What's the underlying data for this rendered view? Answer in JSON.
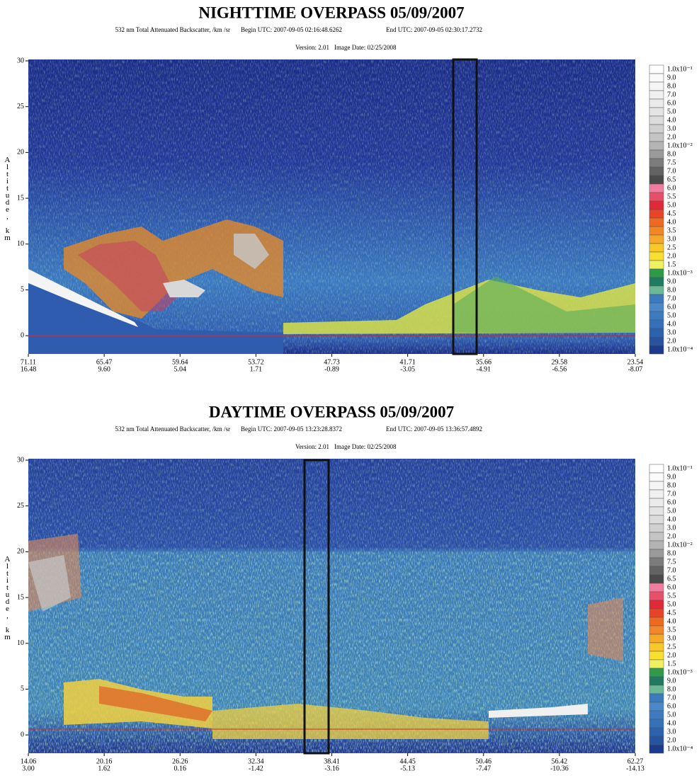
{
  "chart_data": [
    {
      "type": "curtain",
      "title": "NIGHTTIME OVERPASS 05/09/2007",
      "subtitle": "532 nm Total Attenuated Backscatter, /km /sr",
      "begin": "Begin UTC: 2007-09-05 02:16:48.6262",
      "end": "End UTC: 2007-09-05 02:30:17.2732",
      "version": "Version: 2.01",
      "image_date": "Image Date: 02/25/2008",
      "y_label": "Altitude, km",
      "ylim": [
        -2,
        30
      ],
      "yticks": [
        0,
        5,
        10,
        15,
        20,
        25,
        30
      ],
      "x_labels": [
        [
          "71.11",
          "16.48"
        ],
        [
          "65.47",
          "9.60"
        ],
        [
          "59.64",
          "5.04"
        ],
        [
          "53.72",
          "1.71"
        ],
        [
          "47.73",
          "-0.89"
        ],
        [
          "41.71",
          "-3.05"
        ],
        [
          "35.66",
          "-4.91"
        ],
        [
          "29.58",
          "-6.56"
        ],
        [
          "23.54",
          "-8.07"
        ]
      ],
      "colorbar": {
        "labels": [
          "1.0x10⁻¹",
          "9.0",
          "8.0",
          "7.0",
          "6.0",
          "5.0",
          "4.0",
          "3.0",
          "2.0",
          "1.0x10⁻²",
          "8.0",
          "7.5",
          "7.0",
          "6.5",
          "6.0",
          "5.5",
          "5.0",
          "4.5",
          "4.0",
          "3.5",
          "3.0",
          "2.5",
          "2.0",
          "1.5",
          "1.0x10⁻³",
          "9.0",
          "8.0",
          "7.0",
          "6.0",
          "5.0",
          "4.0",
          "3.0",
          "2.0",
          "1.0x10⁻⁴"
        ],
        "colors": [
          "#ffffff",
          "#fafafa",
          "#f5f5f5",
          "#f0f0f0",
          "#ebebeb",
          "#e4e4e4",
          "#dcdcdc",
          "#d0d0d0",
          "#c4c4c4",
          "#b4b4b4",
          "#9a9a9a",
          "#7c7c7c",
          "#636363",
          "#4a4a4a",
          "#f07ca0",
          "#e8506a",
          "#e02a3a",
          "#e8442a",
          "#ee6a22",
          "#f2862a",
          "#f5a82a",
          "#f8c82a",
          "#f8e030",
          "#f0f060",
          "#2e9a4a",
          "#1f7a60",
          "#6ab896",
          "#3c7ac0",
          "#4a88c8",
          "#3e7ac0",
          "#3570b8",
          "#2d62ae",
          "#27549e",
          "#1e3a8c"
        ]
      }
    },
    {
      "type": "curtain",
      "title": "DAYTIME OVERPASS 05/09/2007",
      "subtitle": "532 nm Total Attenuated Backscatter, /km /sr",
      "begin": "Begin UTC: 2007-09-05 13:23:28.8372",
      "end": "End UTC: 2007-09-05 13:36:57.4892",
      "version": "Version: 2.01",
      "image_date": "Image Date: 02/25/2008",
      "y_label": "Altitude, km",
      "ylim": [
        -2,
        30
      ],
      "yticks": [
        0,
        5,
        10,
        15,
        20,
        25,
        30
      ],
      "x_labels": [
        [
          "14.06",
          "3.00"
        ],
        [
          "20.16",
          "1.62"
        ],
        [
          "26.26",
          "0.16"
        ],
        [
          "32.34",
          "-1.42"
        ],
        [
          "38.41",
          "-3.16"
        ],
        [
          "44.45",
          "-5.13"
        ],
        [
          "50.46",
          "-7.47"
        ],
        [
          "56.42",
          "-10.36"
        ],
        [
          "62.27",
          "-14.13"
        ]
      ],
      "colorbar": {
        "labels": [
          "1.0x10⁻¹",
          "9.0",
          "8.0",
          "7.0",
          "6.0",
          "5.0",
          "4.0",
          "3.0",
          "2.0",
          "1.0x10⁻²",
          "8.0",
          "7.5",
          "7.0",
          "6.5",
          "6.0",
          "5.5",
          "5.0",
          "4.5",
          "4.0",
          "3.5",
          "3.0",
          "2.5",
          "2.0",
          "1.5",
          "1.0x10⁻³",
          "9.0",
          "8.0",
          "7.0",
          "6.0",
          "5.0",
          "4.0",
          "3.0",
          "2.0",
          "1.0x10⁻⁴"
        ],
        "colors": [
          "#ffffff",
          "#fafafa",
          "#f5f5f5",
          "#f0f0f0",
          "#ebebeb",
          "#e4e4e4",
          "#dcdcdc",
          "#d0d0d0",
          "#c4c4c4",
          "#b4b4b4",
          "#9a9a9a",
          "#7c7c7c",
          "#636363",
          "#4a4a4a",
          "#f07ca0",
          "#e8506a",
          "#e02a3a",
          "#e8442a",
          "#ee6a22",
          "#f2862a",
          "#f5a82a",
          "#f8c82a",
          "#f8e030",
          "#f0f060",
          "#2e9a4a",
          "#1f7a60",
          "#6ab896",
          "#3c7ac0",
          "#4a88c8",
          "#3e7ac0",
          "#3570b8",
          "#2d62ae",
          "#27549e",
          "#1e3a8c"
        ]
      }
    }
  ]
}
